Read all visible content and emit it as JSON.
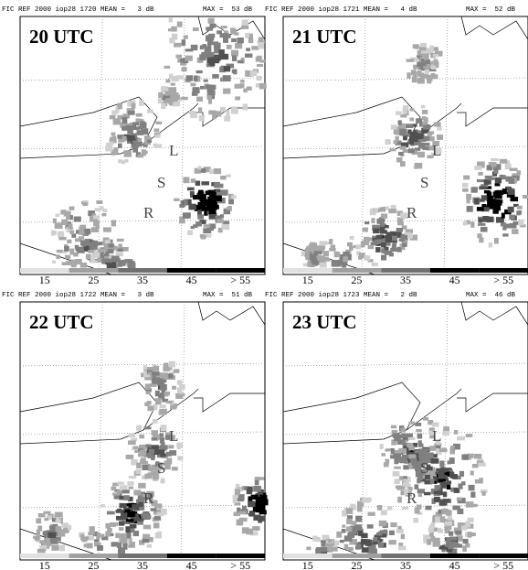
{
  "panels": [
    {
      "header": "FIC REF 2000 iop28 1720 MEAN =   3 dB",
      "max": "MAX =  53 dB",
      "title": "20 UTC",
      "labels": [
        "L",
        "S",
        "R"
      ]
    },
    {
      "header": "FIC REF 2000 iop28 1721 MEAN =   4 dB",
      "max": "MAX =  52 dB",
      "title": "21 UTC",
      "labels": [
        "L",
        "S",
        "R"
      ]
    },
    {
      "header": "FIC REF 2000 iop28 1722 MEAN =   3 dB",
      "max": "MAX =  51 dB",
      "title": "22 UTC",
      "labels": [
        "L",
        "S",
        "R"
      ]
    },
    {
      "header": "FIC REF 2000 iop28 1723 MEAN =   2 dB",
      "max": "MAX =  46 dB",
      "title": "23 UTC",
      "labels": [
        "L",
        "S",
        "R"
      ]
    }
  ],
  "colorbar": [
    "15",
    "25",
    "35",
    "45",
    "> 55"
  ]
}
